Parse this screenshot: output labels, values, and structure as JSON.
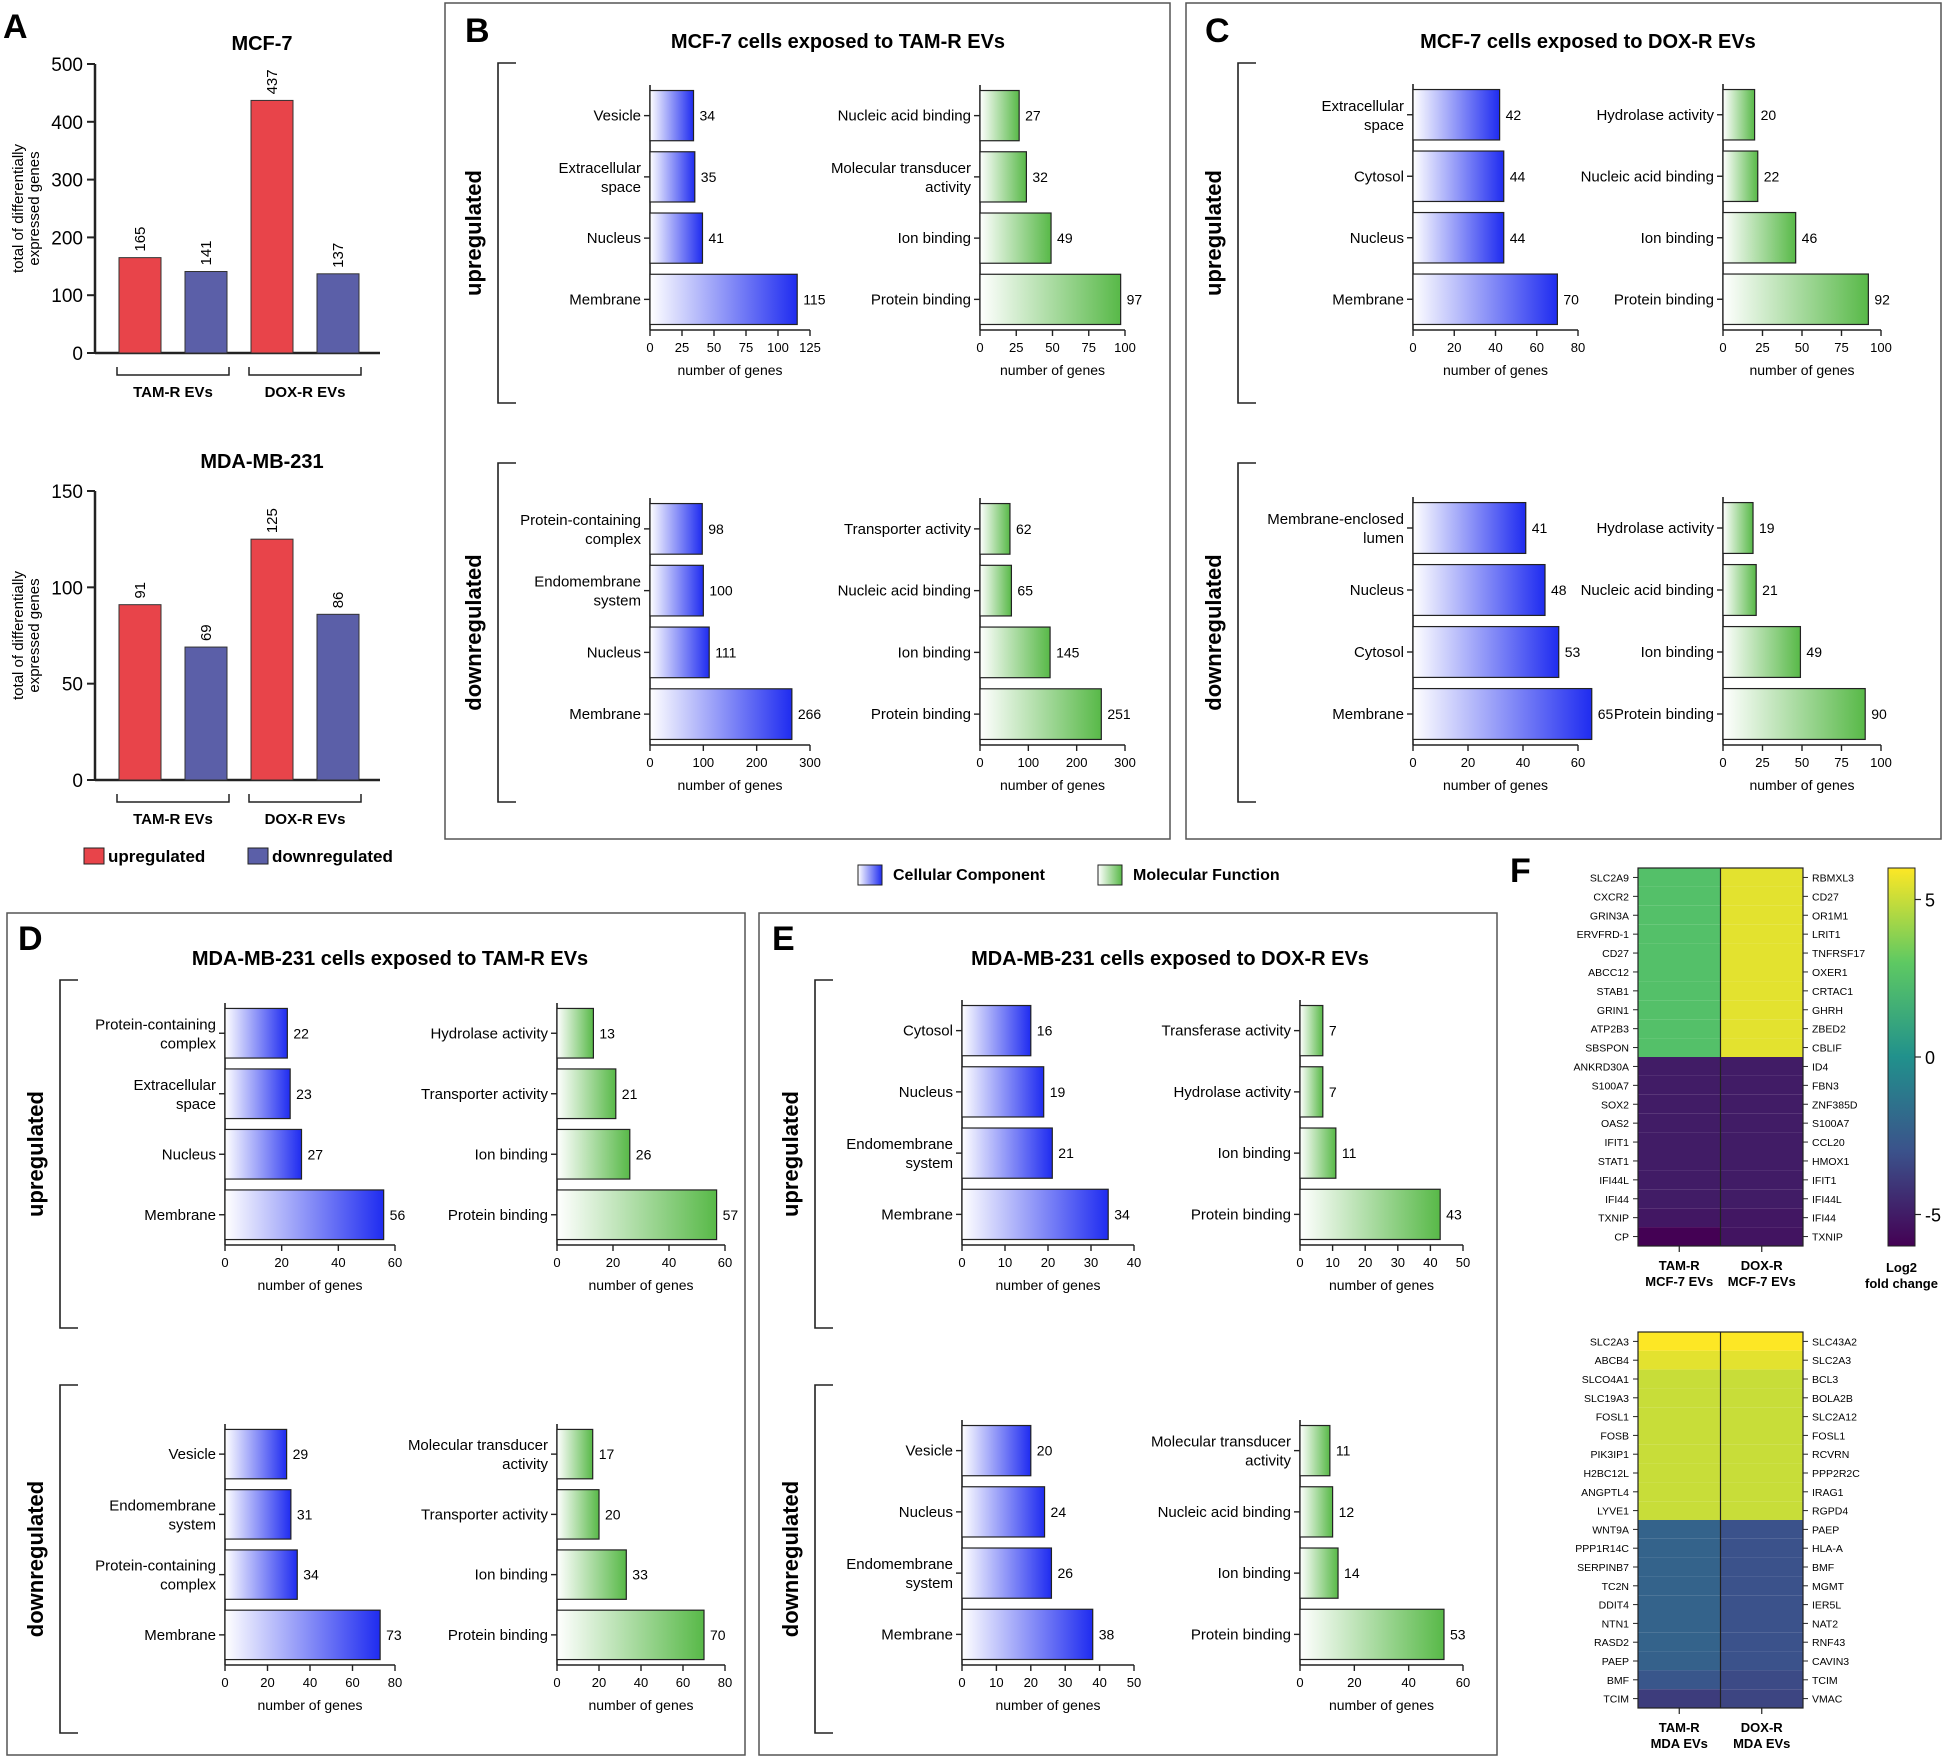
{
  "panel_letters": {
    "A": "A",
    "B": "B",
    "C": "C",
    "D": "D",
    "E": "E",
    "F": "F"
  },
  "legend_go": {
    "cc": "Cellular Component",
    "mf": "Molecular Function"
  },
  "legend_reg": {
    "up": "upregulated",
    "down": "downregulated"
  },
  "colors": {
    "up": "#e8444a",
    "down": "#5b5fa8",
    "cc": "#1f2cf0",
    "mf": "#58b948"
  },
  "chart_data": [
    {
      "id": "A1",
      "type": "bar",
      "title": "MCF-7",
      "ylabel": "total of differentially expressed genes",
      "ylim": [
        0,
        500
      ],
      "yticks": [
        0,
        100,
        200,
        300,
        400,
        500
      ],
      "groups": [
        "TAM-R EVs",
        "DOX-R EVs"
      ],
      "series": [
        {
          "name": "upregulated",
          "values": [
            165,
            437
          ]
        },
        {
          "name": "downregulated",
          "values": [
            141,
            137
          ]
        }
      ]
    },
    {
      "id": "A2",
      "type": "bar",
      "title": "MDA-MB-231",
      "ylabel": "total of differentially expressed genes",
      "ylim": [
        0,
        150
      ],
      "yticks": [
        0,
        50,
        100,
        150
      ],
      "groups": [
        "TAM-R EVs",
        "DOX-R EVs"
      ],
      "series": [
        {
          "name": "upregulated",
          "values": [
            91,
            125
          ]
        },
        {
          "name": "downregulated",
          "values": [
            69,
            86
          ]
        }
      ]
    },
    {
      "id": "B",
      "type": "bar",
      "title": "MCF-7 cells exposed to TAM-R EVs",
      "xlabel": "number of genes",
      "up": {
        "cc": {
          "labels": [
            "Vesicle",
            "Extracellular space",
            "Nucleus",
            "Membrane"
          ],
          "values": [
            34,
            35,
            41,
            115
          ],
          "ticks": [
            0,
            25,
            50,
            75,
            100,
            125
          ]
        },
        "mf": {
          "labels": [
            "Nucleic acid binding",
            "Molecular transducer activity",
            "Ion binding",
            "Protein binding"
          ],
          "values": [
            27,
            32,
            49,
            97
          ],
          "ticks": [
            0,
            25,
            50,
            75,
            100
          ]
        }
      },
      "down": {
        "cc": {
          "labels": [
            "Protein-containing complex",
            "Endomembrane system",
            "Nucleus",
            "Membrane"
          ],
          "values": [
            98,
            100,
            111,
            266
          ],
          "ticks": [
            0,
            100,
            200,
            300
          ]
        },
        "mf": {
          "labels": [
            "Transporter activity",
            "Nucleic acid binding",
            "Ion binding",
            "Protein binding"
          ],
          "values": [
            62,
            65,
            145,
            251
          ],
          "ticks": [
            0,
            100,
            200,
            300
          ]
        }
      }
    },
    {
      "id": "C",
      "type": "bar",
      "title": "MCF-7 cells exposed to DOX-R EVs",
      "xlabel": "number of genes",
      "up": {
        "cc": {
          "labels": [
            "Extracellular space",
            "Cytosol",
            "Nucleus",
            "Membrane"
          ],
          "values": [
            42,
            44,
            44,
            70
          ],
          "ticks": [
            0,
            20,
            40,
            60,
            80
          ]
        },
        "mf": {
          "labels": [
            "Hydrolase activity",
            "Nucleic acid binding",
            "Ion binding",
            "Protein binding"
          ],
          "values": [
            20,
            22,
            46,
            92
          ],
          "ticks": [
            0,
            25,
            50,
            75,
            100
          ]
        }
      },
      "down": {
        "cc": {
          "labels": [
            "Membrane-enclosed lumen",
            "Nucleus",
            "Cytosol",
            "Membrane"
          ],
          "values": [
            41,
            48,
            53,
            65
          ],
          "ticks": [
            0,
            20,
            40,
            60
          ]
        },
        "mf": {
          "labels": [
            "Hydrolase activity",
            "Nucleic acid binding",
            "Ion binding",
            "Protein binding"
          ],
          "values": [
            19,
            21,
            49,
            90
          ],
          "ticks": [
            0,
            25,
            50,
            75,
            100
          ]
        }
      }
    },
    {
      "id": "D",
      "type": "bar",
      "title": "MDA-MB-231 cells exposed to TAM-R EVs",
      "xlabel": "number of genes",
      "up": {
        "cc": {
          "labels": [
            "Protein-containing complex",
            "Extracellular space",
            "Nucleus",
            "Membrane"
          ],
          "values": [
            22,
            23,
            27,
            56
          ],
          "ticks": [
            0,
            20,
            40,
            60
          ]
        },
        "mf": {
          "labels": [
            "Hydrolase activity",
            "Transporter activity",
            "Ion binding",
            "Protein binding"
          ],
          "values": [
            13,
            21,
            26,
            57
          ],
          "ticks": [
            0,
            20,
            40,
            60
          ]
        }
      },
      "down": {
        "cc": {
          "labels": [
            "Vesicle",
            "Endomembrane system",
            "Protein-containing complex",
            "Membrane"
          ],
          "values": [
            29,
            31,
            34,
            73
          ],
          "ticks": [
            0,
            20,
            40,
            60,
            80
          ]
        },
        "mf": {
          "labels": [
            "Molecular transducer activity",
            "Transporter activity",
            "Ion binding",
            "Protein binding"
          ],
          "values": [
            17,
            20,
            33,
            70
          ],
          "ticks": [
            0,
            20,
            40,
            60,
            80
          ]
        }
      }
    },
    {
      "id": "E",
      "type": "bar",
      "title": "MDA-MB-231 cells exposed to DOX-R EVs",
      "xlabel": "number of genes",
      "up": {
        "cc": {
          "labels": [
            "Cytosol",
            "Nucleus",
            "Endomembrane system",
            "Membrane"
          ],
          "values": [
            16,
            19,
            21,
            34
          ],
          "ticks": [
            0,
            10,
            20,
            30,
            40
          ]
        },
        "mf": {
          "labels": [
            "Transferase activity",
            "Hydrolase activity",
            "Ion binding",
            "Protein binding"
          ],
          "values": [
            7,
            7,
            11,
            43
          ],
          "ticks": [
            0,
            10,
            20,
            30,
            40,
            50
          ]
        }
      },
      "down": {
        "cc": {
          "labels": [
            "Vesicle",
            "Nucleus",
            "Endomembrane system",
            "Membrane"
          ],
          "values": [
            20,
            24,
            26,
            38
          ],
          "ticks": [
            0,
            10,
            20,
            30,
            40,
            50
          ]
        },
        "mf": {
          "labels": [
            "Molecular transducer activity",
            "Nucleic acid binding",
            "Ion binding",
            "Protein binding"
          ],
          "values": [
            11,
            12,
            14,
            53
          ],
          "ticks": [
            0,
            20,
            40,
            60
          ]
        }
      }
    },
    {
      "id": "F1",
      "type": "heatmap",
      "columns": [
        "TAM-R MCF-7 EVs",
        "DOX-R MCF-7 EVs"
      ],
      "left_labels": [
        "SLC2A9",
        "CXCR2",
        "GRIN3A",
        "ERVFRD-1",
        "CD27",
        "ABCC12",
        "STAB1",
        "GRIN1",
        "ATP2B3",
        "SBSPON",
        "ANKRD30A",
        "S100A7",
        "SOX2",
        "OAS2",
        "IFIT1",
        "STAT1",
        "IFI44L",
        "IFI44",
        "TXNIP",
        "CP"
      ],
      "right_labels": [
        "RBMXL3",
        "CD27",
        "OR1M1",
        "LRIT1",
        "TNFRSF17",
        "OXER1",
        "CRTAC1",
        "GHRH",
        "ZBED2",
        "CBLIF",
        "ID4",
        "FBN3",
        "ZNF385D",
        "S100A7",
        "CCL20",
        "HMOX1",
        "IFIT1",
        "IFI44L",
        "IFI44",
        "TXNIP"
      ],
      "values": [
        [
          2.5,
          5.5
        ],
        [
          2.5,
          5.5
        ],
        [
          2.5,
          5.5
        ],
        [
          2.5,
          5.5
        ],
        [
          2.5,
          5.5
        ],
        [
          2.5,
          5.5
        ],
        [
          2.5,
          5.5
        ],
        [
          2.5,
          5.5
        ],
        [
          2.5,
          5.5
        ],
        [
          2.5,
          5.5
        ],
        [
          -5,
          -5
        ],
        [
          -5,
          -5
        ],
        [
          -5,
          -5
        ],
        [
          -5,
          -5
        ],
        [
          -5,
          -5
        ],
        [
          -5,
          -5
        ],
        [
          -5,
          -5
        ],
        [
          -5,
          -5
        ],
        [
          -5.2,
          -5.2
        ],
        [
          -6.2,
          -5.3
        ]
      ]
    },
    {
      "id": "F2",
      "type": "heatmap",
      "columns": [
        "TAM-R MDA EVs",
        "DOX-R MDA EVs"
      ],
      "left_labels": [
        "SLC2A3",
        "ABCB4",
        "SLCO4A1",
        "SLC19A3",
        "FOSL1",
        "FOSB",
        "PIK3IP1",
        "H2BC12L",
        "ANGPTL4",
        "LYVE1",
        "WNT9A",
        "PPP1R14C",
        "SERPINB7",
        "TC2N",
        "DDIT4",
        "NTN1",
        "RASD2",
        "PAEP",
        "BMF",
        "TCIM"
      ],
      "right_labels": [
        "SLC43A2",
        "SLC2A3",
        "BCL3",
        "BOLA2B",
        "SLC2A12",
        "FOSL1",
        "RCVRN",
        "PPP2R2C",
        "IRAG1",
        "RGPD4",
        "PAEP",
        "HLA-A",
        "BMF",
        "MGMT",
        "IER5L",
        "NAT2",
        "RNF43",
        "CAVIN3",
        "TCIM",
        "VMAC"
      ],
      "values": [
        [
          6,
          6
        ],
        [
          5.5,
          5.5
        ],
        [
          5,
          5
        ],
        [
          5,
          5
        ],
        [
          5,
          5
        ],
        [
          5,
          5
        ],
        [
          5,
          5
        ],
        [
          5,
          5
        ],
        [
          5,
          5
        ],
        [
          5,
          5
        ],
        [
          -2.2,
          -3
        ],
        [
          -2.2,
          -3
        ],
        [
          -2.2,
          -3
        ],
        [
          -2.2,
          -3
        ],
        [
          -2.2,
          -3
        ],
        [
          -2.2,
          -3
        ],
        [
          -2.2,
          -3
        ],
        [
          -2.3,
          -3
        ],
        [
          -2.8,
          -3.3
        ],
        [
          -3.8,
          -3.5
        ]
      ]
    },
    {
      "id": "F_scale",
      "type": "colorbar",
      "title": "Log2 fold change",
      "range": [
        -6,
        6
      ],
      "ticks": [
        5,
        0,
        -5
      ]
    }
  ]
}
